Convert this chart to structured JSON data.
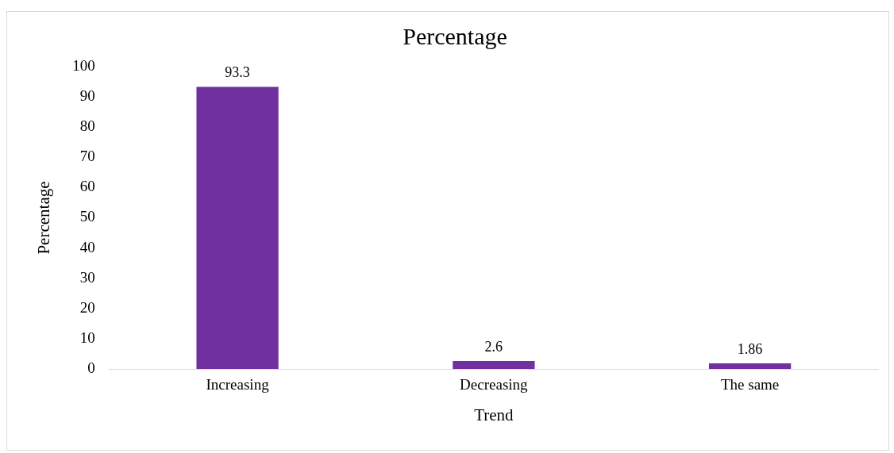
{
  "chart_data": {
    "type": "bar",
    "title": "Percentage",
    "xlabel": "Trend",
    "ylabel": "Percentage",
    "categories": [
      "Increasing",
      "Decreasing",
      "The same"
    ],
    "values": [
      93.3,
      2.6,
      1.86
    ],
    "color": "#7030a0",
    "ylim": [
      0,
      100
    ],
    "yticks": [
      0,
      10,
      20,
      30,
      40,
      50,
      60,
      70,
      80,
      90,
      100
    ],
    "grid": false,
    "data_labels": true
  }
}
